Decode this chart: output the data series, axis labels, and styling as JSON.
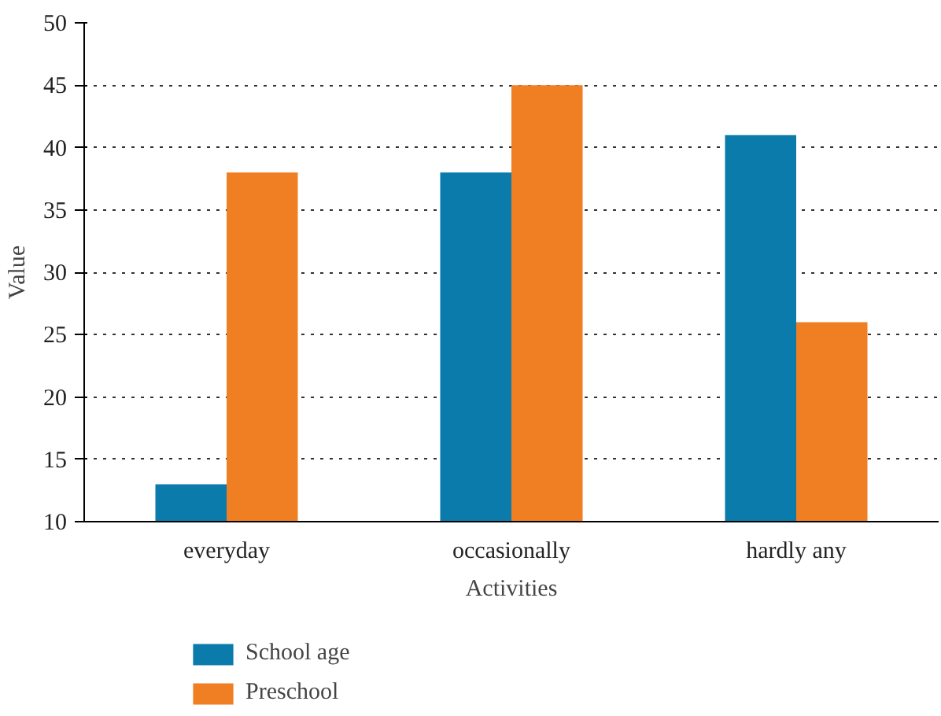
{
  "chart_data": {
    "type": "bar",
    "xlabel": "Activities",
    "ylabel": "Value",
    "categories": [
      "everyday",
      "occasionally",
      "hardly any"
    ],
    "series": [
      {
        "name": "School age",
        "color": "#0a7bab",
        "values": [
          13,
          38,
          41
        ]
      },
      {
        "name": "Preschool",
        "color": "#f07e22",
        "values": [
          38,
          45,
          26
        ]
      }
    ],
    "ylim": [
      10,
      50
    ],
    "yticks": [
      10,
      15,
      20,
      25,
      30,
      35,
      40,
      45,
      50
    ],
    "grid": "y",
    "legend": "bottom left"
  }
}
